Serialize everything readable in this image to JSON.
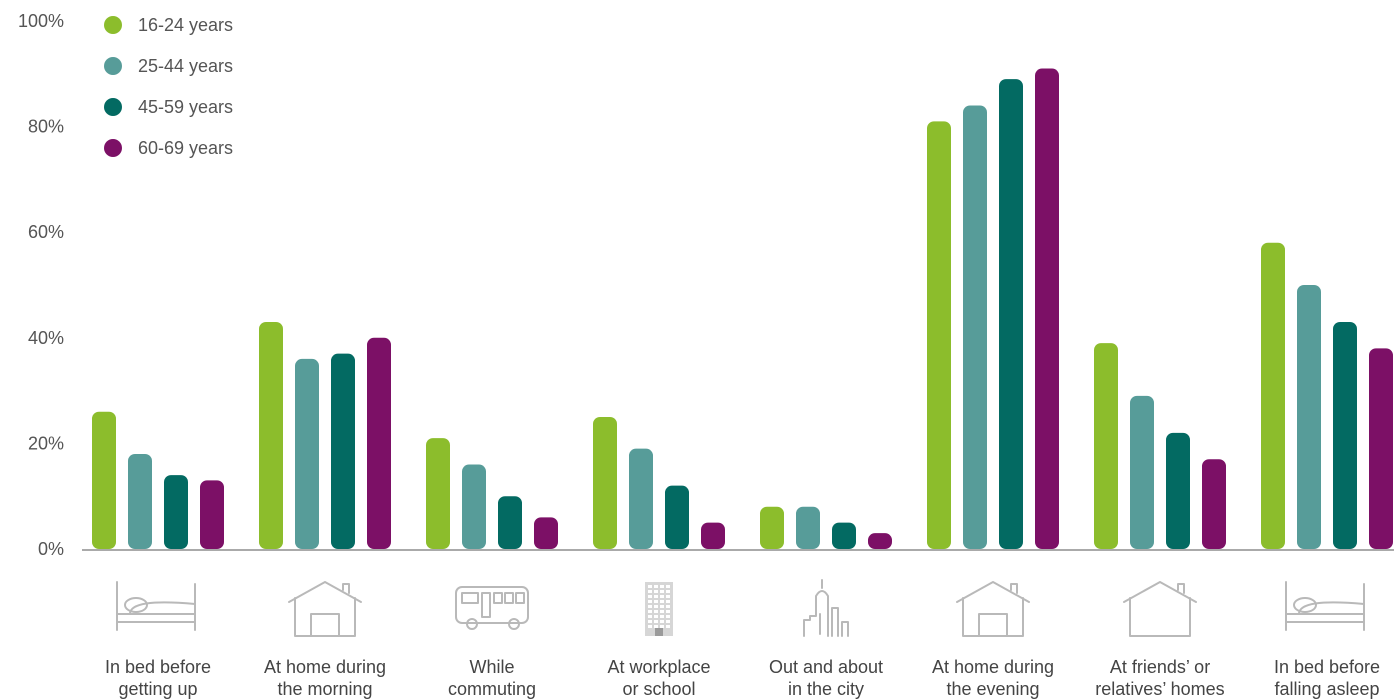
{
  "chart_data": {
    "type": "bar",
    "title": "",
    "xlabel": "",
    "ylabel": "",
    "ylim": [
      0,
      100
    ],
    "yticks": [
      "0%",
      "20%",
      "40%",
      "60%",
      "80%",
      "100%"
    ],
    "grid": false,
    "legend_position": "top-left",
    "categories": [
      [
        "In bed before",
        "getting up"
      ],
      [
        "At home during",
        "the morning"
      ],
      [
        "While",
        "commuting"
      ],
      [
        "At workplace",
        "or school"
      ],
      [
        "Out and about",
        "in the city"
      ],
      [
        "At home during",
        "the evening"
      ],
      [
        "At friends’ or",
        "relatives’ homes"
      ],
      [
        "In bed before",
        "falling asleep"
      ]
    ],
    "category_icons": [
      "bed-icon",
      "house-icon",
      "bus-icon",
      "office-building-icon",
      "city-skyline-icon",
      "house-icon",
      "house-outline-icon",
      "bed-icon"
    ],
    "series": [
      {
        "name": "16-24 years",
        "color": "#8cbd2c",
        "values": [
          26,
          43,
          21,
          25,
          8,
          81,
          39,
          58
        ]
      },
      {
        "name": "25-44 years",
        "color": "#579c99",
        "values": [
          18,
          36,
          16,
          19,
          8,
          84,
          29,
          50
        ]
      },
      {
        "name": "45-59 years",
        "color": "#036a62",
        "values": [
          14,
          37,
          10,
          12,
          5,
          89,
          22,
          43
        ]
      },
      {
        "name": "60-69 years",
        "color": "#7c1066",
        "values": [
          13,
          40,
          6,
          5,
          3,
          91,
          17,
          38
        ]
      }
    ]
  }
}
